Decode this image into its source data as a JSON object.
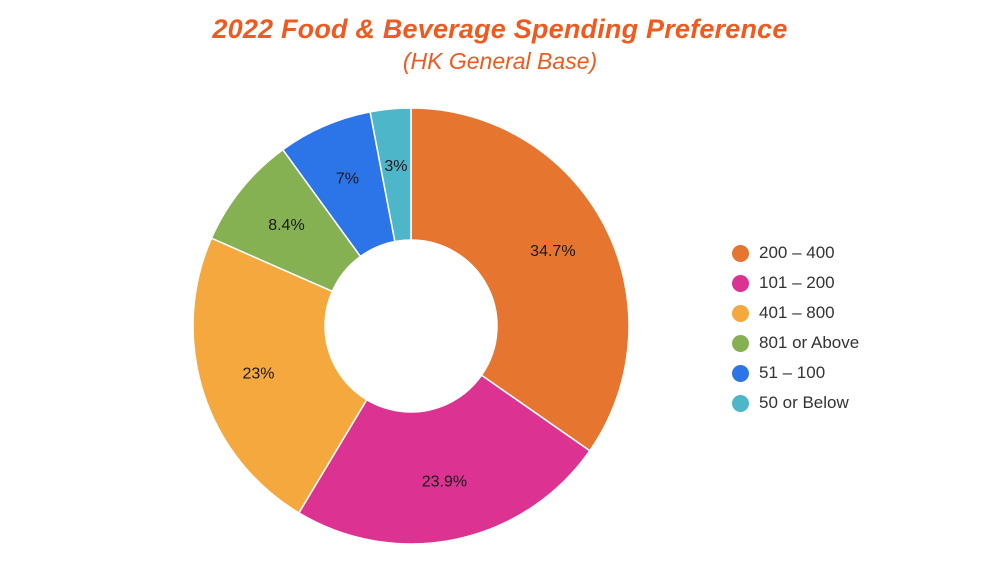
{
  "chart_data": {
    "type": "pie",
    "title": "2022 Food & Beverage Spending Preference",
    "subtitle": "(HK General Base)",
    "donut": true,
    "legend_position": "right",
    "slices": [
      {
        "label": "200 – 400",
        "value": 34.7,
        "display": "34.7%",
        "color": "#e67530"
      },
      {
        "label": "101 – 200",
        "value": 23.9,
        "display": "23.9%",
        "color": "#dc3392"
      },
      {
        "label": "401 – 800",
        "value": 23,
        "display": "23%",
        "color": "#f4a83d"
      },
      {
        "label": "801 or Above",
        "value": 8.4,
        "display": "8.4%",
        "color": "#86b152"
      },
      {
        "label": "51 – 100",
        "value": 7,
        "display": "7%",
        "color": "#2c75e9"
      },
      {
        "label": "50 or Below",
        "value": 3,
        "display": "3%",
        "color": "#4db6c9"
      }
    ]
  }
}
